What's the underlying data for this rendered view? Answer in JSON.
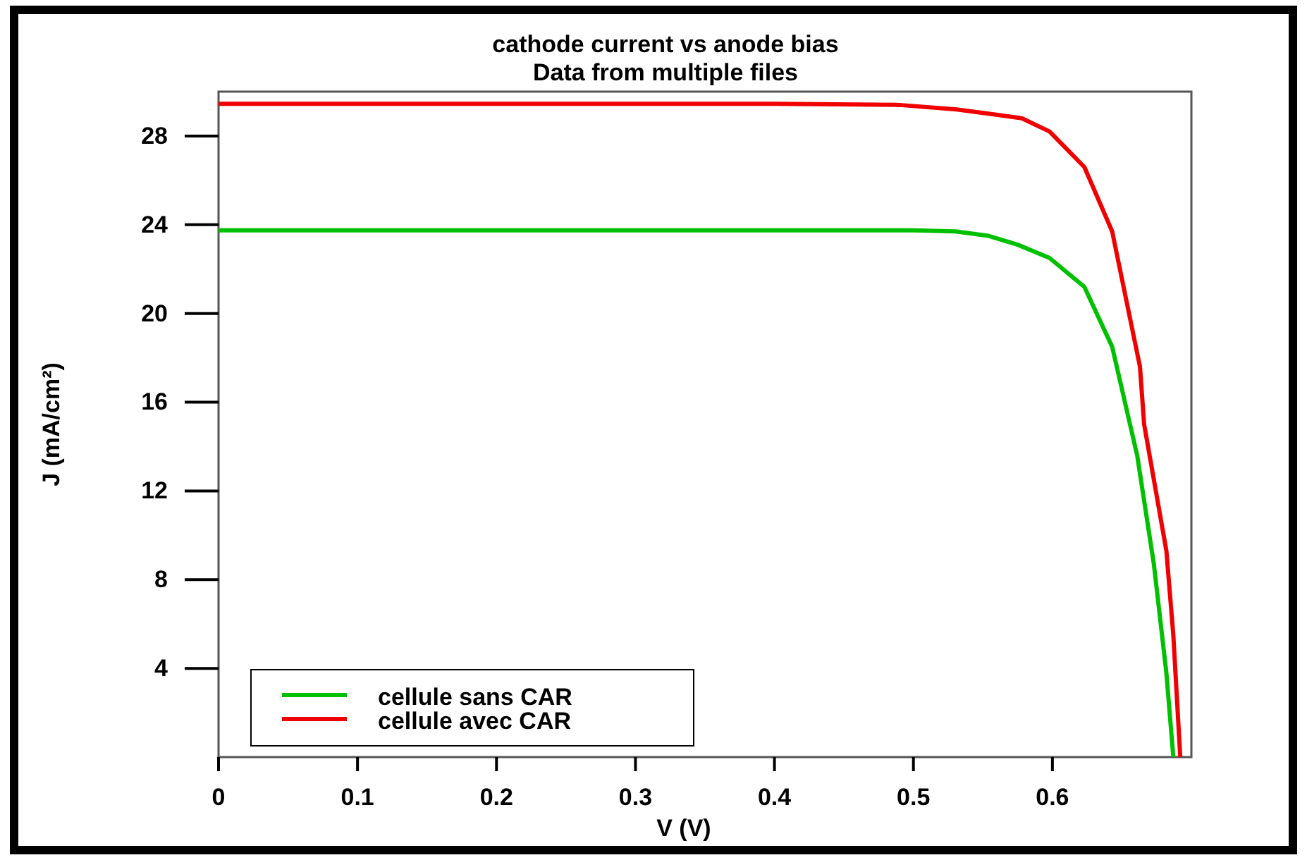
{
  "chart_data": {
    "type": "line",
    "title": "cathode current vs anode bias",
    "subtitle": "Data from multiple files",
    "xlabel": "V (V)",
    "ylabel": "J (mA/cm²)",
    "xlim": [
      0,
      0.7
    ],
    "ylim": [
      0,
      30
    ],
    "xticks": [
      0,
      0.1,
      0.2,
      0.3,
      0.4,
      0.5,
      0.6
    ],
    "yticks": [
      4,
      8,
      12,
      16,
      20,
      24,
      28
    ],
    "grid": false,
    "legend": "bottom left",
    "marker": "none",
    "line_style": "solid",
    "series": [
      {
        "name": "cellule sans CAR",
        "color": "#00c000",
        "x": [
          0,
          0.1,
          0.2,
          0.3,
          0.4,
          0.5,
          0.53,
          0.554,
          0.575,
          0.598,
          0.623,
          0.643,
          0.661,
          0.673,
          0.682,
          0.687
        ],
        "values": [
          23.75,
          23.75,
          23.75,
          23.75,
          23.75,
          23.75,
          23.7,
          23.5,
          23.1,
          22.5,
          21.2,
          18.5,
          13.6,
          8.7,
          3.8,
          0
        ]
      },
      {
        "name": "cellule avec CAR",
        "color": "#f00000",
        "x": [
          0,
          0.1,
          0.2,
          0.3,
          0.4,
          0.49,
          0.531,
          0.555,
          0.578,
          0.598,
          0.623,
          0.643,
          0.663,
          0.666,
          0.682,
          0.687,
          0.692
        ],
        "values": [
          29.45,
          29.45,
          29.45,
          29.45,
          29.45,
          29.4,
          29.2,
          29.0,
          28.8,
          28.2,
          26.6,
          23.7,
          17.6,
          15.0,
          9.3,
          5.5,
          0
        ]
      }
    ]
  }
}
